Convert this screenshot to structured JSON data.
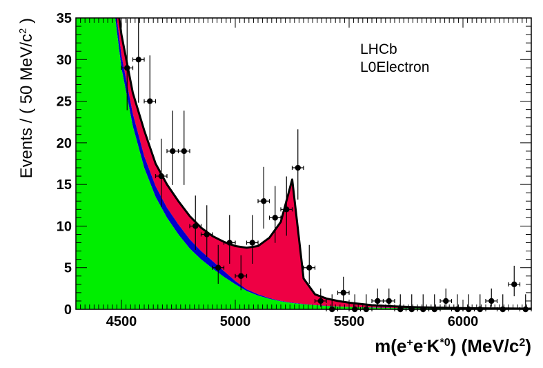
{
  "chart_data": {
    "type": "line",
    "xlabel": "m(e⁺e⁻K *⁰) (MeV/c²)",
    "xlabel_parts": [
      {
        "t": "m(e",
        "sup": false
      },
      {
        "t": "+",
        "sup": true
      },
      {
        "t": "e",
        "sup": false
      },
      {
        "t": "-",
        "sup": true
      },
      {
        "t": "K",
        "sup": false
      },
      {
        "t": "*0",
        "sup": true
      },
      {
        "t": ") (MeV/c",
        "sup": false
      },
      {
        "t": "2",
        "sup": true
      },
      {
        "t": ")",
        "sup": false
      }
    ],
    "ylabel": "Events / ( 50 MeV/c² )",
    "ylabel_parts": [
      {
        "t": "Events / ( 50 MeV/c",
        "sup": false
      },
      {
        "t": "2",
        "sup": true
      },
      {
        "t": " )",
        "sup": false
      }
    ],
    "xlim": [
      4300,
      6300
    ],
    "ylim": [
      0,
      35
    ],
    "xticks": [
      "4500",
      "5000",
      "5500",
      "6000"
    ],
    "yticks": [
      "0",
      "5",
      "10",
      "15",
      "20",
      "25",
      "30",
      "35"
    ],
    "annotations": [
      "LHCb",
      "L0Electron"
    ],
    "colors": {
      "green": "#00ee00",
      "blue": "#0000cc",
      "red": "#ee0044",
      "curve": "#000000"
    },
    "series": [
      {
        "kind": "stacked_area",
        "x": [
          4300,
          4350,
          4400,
          4450,
          4500,
          4550,
          4600,
          4650,
          4700,
          4750,
          4800,
          4850,
          4900,
          4950,
          5000,
          5050,
          5100,
          5150,
          5200,
          5250,
          5300,
          5350,
          5400,
          5450,
          5500,
          5600,
          5700,
          5800,
          5900,
          6000,
          6100,
          6200,
          6300
        ],
        "green": [
          80,
          70,
          55,
          40,
          29,
          22,
          17,
          13.5,
          11,
          9,
          7.3,
          6,
          4.9,
          3.9,
          3.0,
          2.2,
          1.65,
          1.25,
          0.95,
          0.75,
          0.6,
          0.5,
          0.4,
          0.33,
          0.28,
          0.2,
          0.15,
          0.12,
          0.1,
          0.08,
          0.07,
          0.06,
          0.05
        ],
        "blue": [
          90,
          73,
          57,
          41.5,
          30.5,
          23.5,
          18.4,
          14.8,
          12.2,
          10.2,
          8.4,
          7.0,
          5.8,
          4.6,
          3.4,
          2.4,
          1.8,
          1.35,
          1.0,
          0.8,
          0.65,
          0.52,
          0.42,
          0.35,
          0.3,
          0.22,
          0.17,
          0.13,
          0.11,
          0.09,
          0.08,
          0.07,
          0.06
        ],
        "total": [
          95,
          76,
          59,
          43.5,
          33,
          26,
          21.5,
          17.5,
          15,
          13,
          11.2,
          9.8,
          8.8,
          8.1,
          7.6,
          7.4,
          7.6,
          8.6,
          10.5,
          15.6,
          3.7,
          1.8,
          1.3,
          1.0,
          0.8,
          0.5,
          0.35,
          0.25,
          0.2,
          0.15,
          0.12,
          0.1,
          0.08
        ]
      },
      {
        "kind": "points_with_errors",
        "x": [
          4525,
          4575,
          4625,
          4675,
          4725,
          4775,
          4825,
          4875,
          4925,
          4975,
          5025,
          5075,
          5125,
          5175,
          5225,
          5275,
          5325,
          5375,
          5425,
          5475,
          5525,
          5575,
          5625,
          5675,
          5725,
          5775,
          5825,
          5875,
          5925,
          5975,
          6025,
          6075,
          6125,
          6175,
          6225,
          6275
        ],
        "y": [
          29,
          30,
          25,
          16,
          19,
          19,
          10,
          9,
          5,
          8,
          4,
          8,
          13,
          11,
          12,
          17,
          5,
          1,
          0,
          2,
          0,
          0,
          1,
          1,
          0,
          0,
          0,
          0,
          1,
          0,
          0,
          0,
          1,
          0,
          3,
          0
        ],
        "xerr": 25
      }
    ]
  }
}
